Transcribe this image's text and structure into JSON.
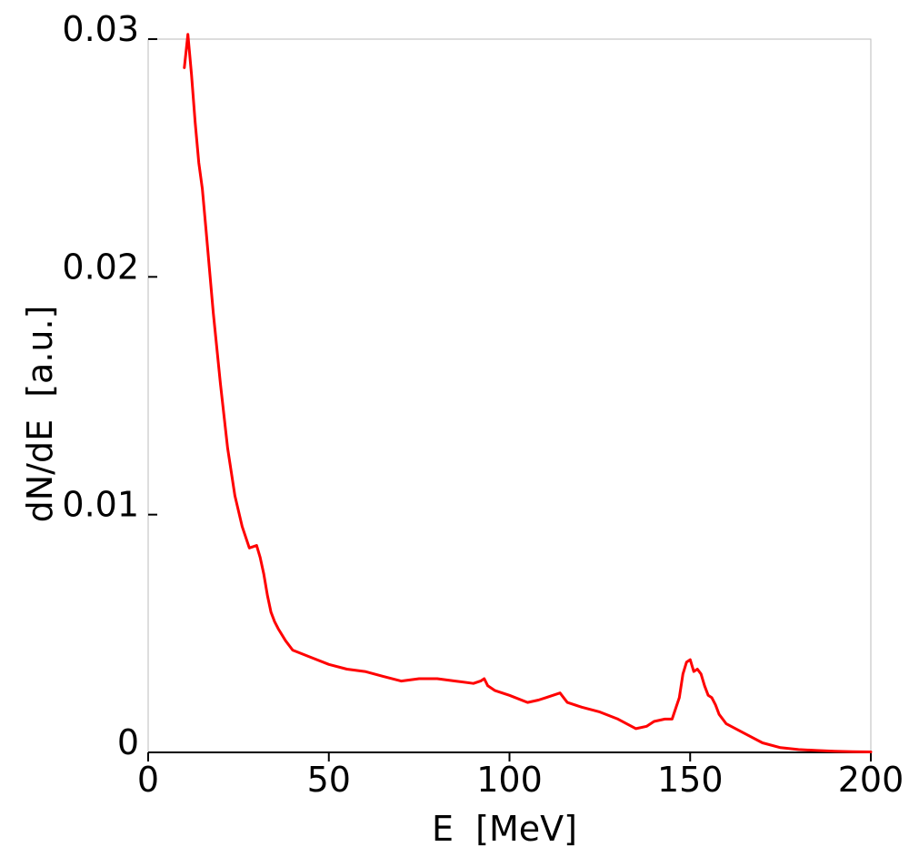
{
  "chart_data": {
    "type": "line",
    "title": "",
    "xlabel": "E  [MeV]",
    "ylabel": "dN/dE  [a.u.]",
    "xlim": [
      0,
      200
    ],
    "ylim": [
      0,
      0.03
    ],
    "xticks": [
      0,
      50,
      100,
      150,
      200
    ],
    "xtick_labels": [
      "0",
      "50",
      "100",
      "150",
      "200"
    ],
    "yticks": [
      0,
      0.01,
      0.02,
      0.03
    ],
    "ytick_labels": [
      "0",
      "0.01",
      "0.02",
      "0.03"
    ],
    "grid": false,
    "legend": "none",
    "series": [
      {
        "color": "#ff0000",
        "x": [
          10,
          11,
          12,
          13,
          14,
          15,
          16,
          18,
          20,
          22,
          24,
          26,
          28,
          30,
          31,
          32,
          33,
          34,
          35,
          36,
          38,
          40,
          45,
          50,
          55,
          60,
          65,
          70,
          75,
          80,
          85,
          90,
          92,
          93,
          94,
          96,
          100,
          105,
          108,
          110,
          112,
          114,
          115,
          116,
          118,
          120,
          125,
          130,
          135,
          138,
          140,
          143,
          145,
          147,
          148,
          149,
          150,
          151,
          152,
          153,
          154,
          155,
          156,
          157,
          158,
          160,
          165,
          170,
          175,
          180,
          185,
          190,
          195,
          200
        ],
        "values": [
          0.0288,
          0.0302,
          0.0285,
          0.0265,
          0.0248,
          0.0237,
          0.022,
          0.0185,
          0.0155,
          0.0128,
          0.0108,
          0.0095,
          0.0086,
          0.0087,
          0.0082,
          0.0075,
          0.0066,
          0.0059,
          0.0055,
          0.0052,
          0.0047,
          0.0043,
          0.004,
          0.0037,
          0.0035,
          0.0034,
          0.0032,
          0.003,
          0.0031,
          0.0031,
          0.003,
          0.0029,
          0.003,
          0.0031,
          0.0028,
          0.0026,
          0.0024,
          0.0021,
          0.0022,
          0.0023,
          0.0024,
          0.0025,
          0.0023,
          0.0021,
          0.002,
          0.0019,
          0.0017,
          0.0014,
          0.001,
          0.0011,
          0.0013,
          0.0014,
          0.0014,
          0.0023,
          0.0033,
          0.0038,
          0.0039,
          0.0034,
          0.0035,
          0.0033,
          0.0028,
          0.0024,
          0.0023,
          0.002,
          0.0016,
          0.0012,
          0.0008,
          0.0004,
          0.0002,
          0.00012,
          8e-05,
          5e-05,
          3e-05,
          2e-05
        ]
      }
    ]
  }
}
